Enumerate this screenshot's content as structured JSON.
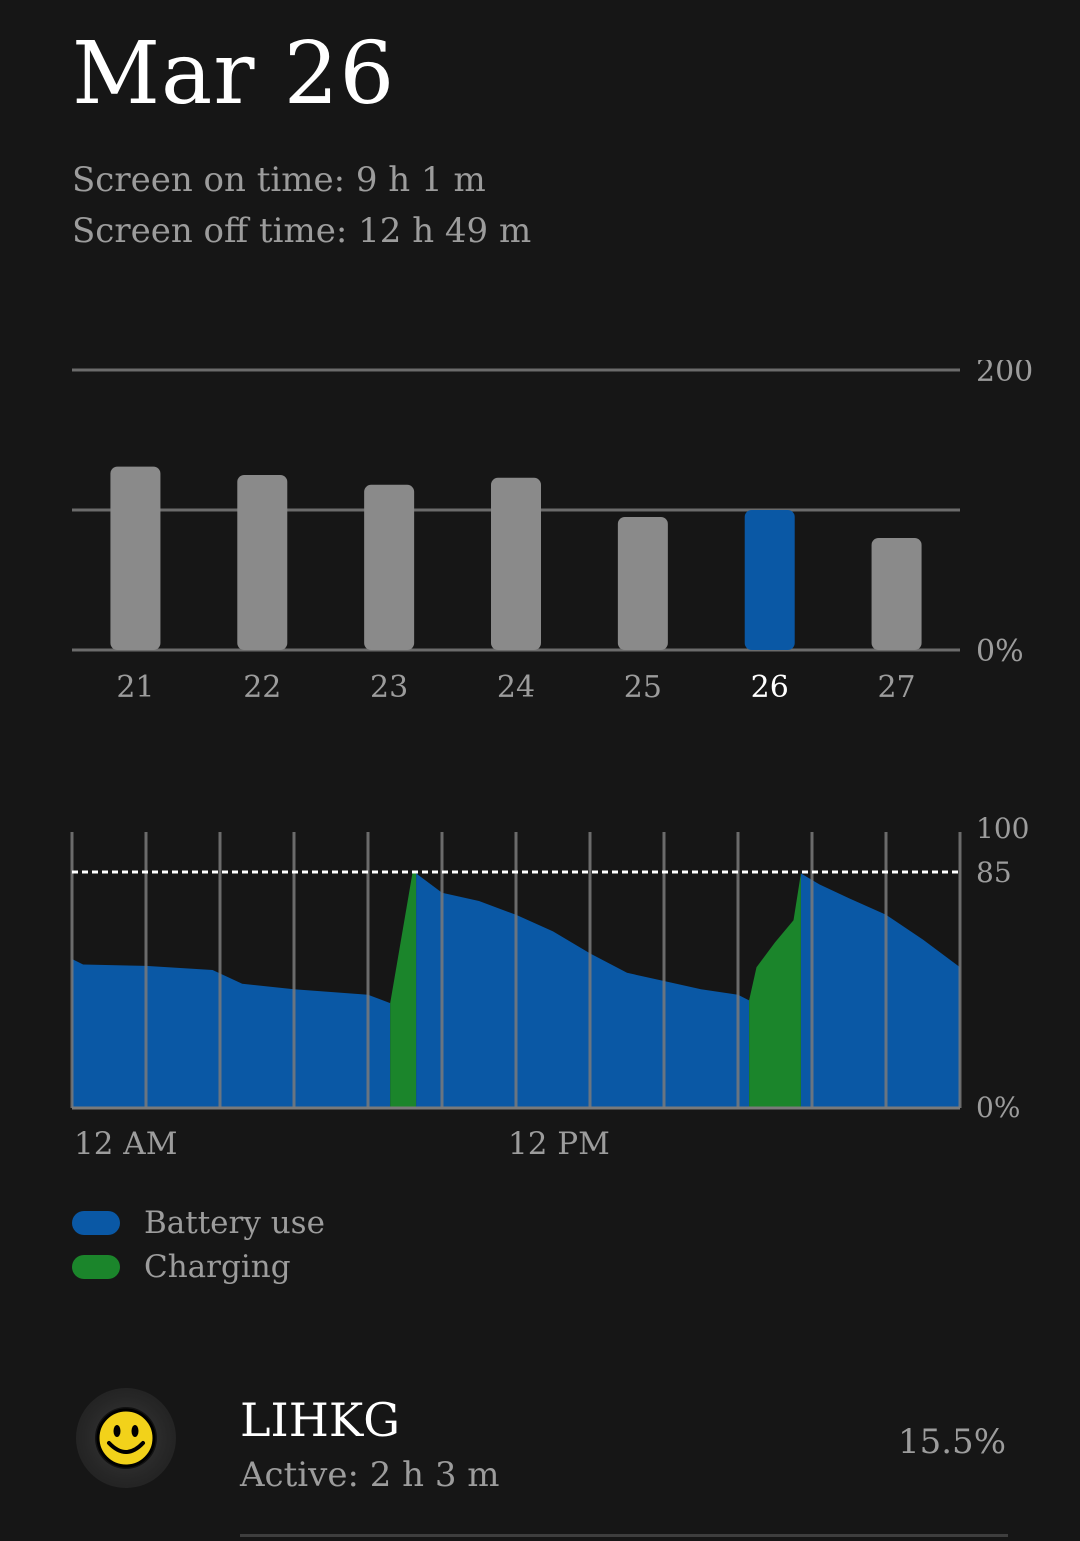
{
  "header": {
    "title": "Mar 26",
    "screen_on": "Screen on time: 9 h 1 m",
    "screen_off": "Screen off time: 12 h 49 m"
  },
  "colors": {
    "background": "#161616",
    "battery_use": "#0a58a5",
    "charging": "#1b852b",
    "inactive_bar": "#8a8a8a",
    "grid": "#6b6b6b",
    "muted_text": "#9c9c9c"
  },
  "chart_data": [
    {
      "type": "bar",
      "categories": [
        "21",
        "22",
        "23",
        "24",
        "25",
        "26",
        "27"
      ],
      "values": [
        131,
        125,
        118,
        123,
        95,
        100,
        80
      ],
      "selected": "26",
      "ylim": [
        0,
        200
      ],
      "y_tick_labels": [
        "200",
        "0%"
      ],
      "grid": true
    },
    {
      "type": "area",
      "ylim": [
        0,
        100
      ],
      "y_tick_labels": [
        "100",
        "85",
        "0%"
      ],
      "reference_line": 85,
      "x_tick_labels": [
        "12 AM",
        "12 PM"
      ],
      "x_range_hours": [
        0,
        24
      ],
      "grid": true,
      "series": [
        {
          "name": "Battery use",
          "segments": [
            {
              "points": [
                [
                  0,
                  54
                ],
                [
                  0.3,
                  52
                ],
                [
                  2,
                  51.5
                ],
                [
                  3.8,
                  50
                ],
                [
                  4.6,
                  45
                ],
                [
                  6,
                  43
                ],
                [
                  8,
                  41
                ],
                [
                  8.6,
                  38
                ],
                [
                  8.6,
                  0
                ],
                [
                  0,
                  0
                ]
              ]
            },
            {
              "points": [
                [
                  9.3,
                  85
                ],
                [
                  10,
                  78
                ],
                [
                  11,
                  75
                ],
                [
                  12,
                  70
                ],
                [
                  13,
                  64
                ],
                [
                  14,
                  56
                ],
                [
                  15,
                  49
                ],
                [
                  16,
                  46
                ],
                [
                  17,
                  43
                ],
                [
                  18,
                  41
                ],
                [
                  18.3,
                  39
                ],
                [
                  18.3,
                  0
                ],
                [
                  9.3,
                  0
                ]
              ]
            },
            {
              "points": [
                [
                  19.7,
                  85
                ],
                [
                  20.2,
                  81
                ],
                [
                  21,
                  76
                ],
                [
                  22,
                  70
                ],
                [
                  23,
                  61
                ],
                [
                  24,
                  51
                ],
                [
                  24,
                  0
                ],
                [
                  19.7,
                  0
                ]
              ]
            }
          ]
        },
        {
          "name": "Charging",
          "segments": [
            {
              "points": [
                [
                  8.6,
                  38
                ],
                [
                  9.2,
                  85
                ],
                [
                  9.3,
                  85
                ],
                [
                  9.3,
                  0
                ],
                [
                  8.6,
                  0
                ]
              ]
            },
            {
              "points": [
                [
                  18.3,
                  39
                ],
                [
                  18.5,
                  51
                ],
                [
                  19,
                  60
                ],
                [
                  19.5,
                  68
                ],
                [
                  19.7,
                  85
                ],
                [
                  19.7,
                  0
                ],
                [
                  18.3,
                  0
                ]
              ]
            }
          ]
        }
      ]
    }
  ],
  "legend": {
    "battery_use": "Battery use",
    "charging": "Charging"
  },
  "apps": [
    {
      "name": "LIHKG",
      "active": "Active: 2 h 3 m",
      "percent": "15.5%",
      "icon": "smiley-face-icon"
    }
  ]
}
